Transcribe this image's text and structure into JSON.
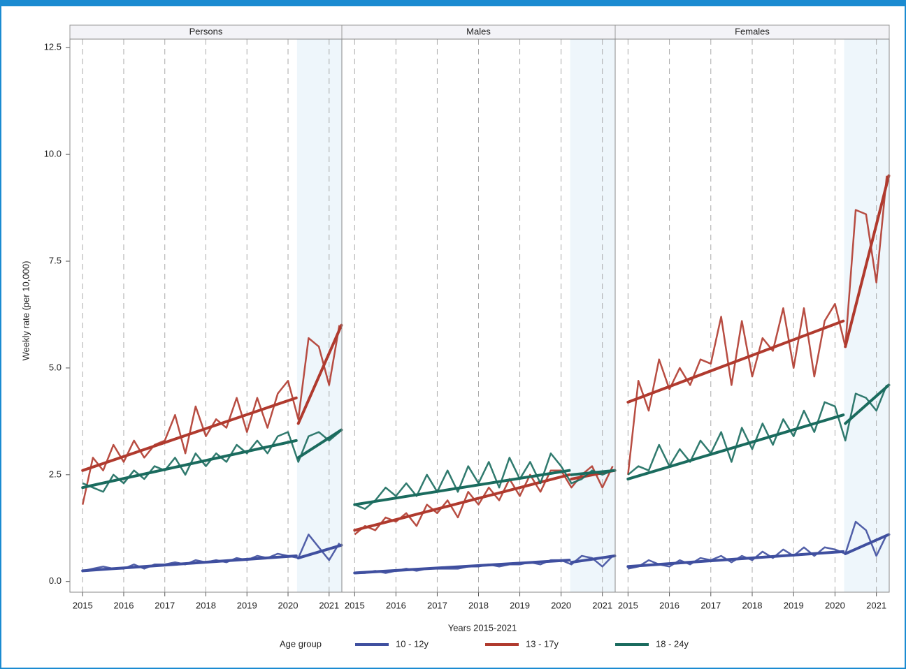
{
  "chart_data": {
    "type": "line",
    "ylabel": "Weekly rate (per 10,000)",
    "xlabel": "Years 2015-2021",
    "legend_title": "Age group",
    "legend_position": "bottom",
    "grid": true,
    "ylim": [
      -0.25,
      12.7
    ],
    "yticks": [
      {
        "value": 0,
        "label": "0.0"
      },
      {
        "value": 2.5,
        "label": "2.5"
      },
      {
        "value": 5,
        "label": "5.0"
      },
      {
        "value": 7.5,
        "label": "7.5"
      },
      {
        "value": 10,
        "label": "10.0"
      },
      {
        "value": 12.5,
        "label": "12.5"
      }
    ],
    "xlim": [
      2014.69,
      2021.31
    ],
    "xticks": [
      2015,
      2016,
      2017,
      2018,
      2019,
      2020,
      2021
    ],
    "shaded_xrange": [
      2020.22,
      2021.31
    ],
    "series": [
      {
        "name": "10 - 12y",
        "color": "#3f4f9f"
      },
      {
        "name": "13 - 17y",
        "color": "#b03a2e"
      },
      {
        "name": "18 - 24y",
        "color": "#1a6b5e"
      }
    ],
    "x": [
      2015,
      2015.25,
      2015.5,
      2015.75,
      2016,
      2016.25,
      2016.5,
      2016.75,
      2017,
      2017.25,
      2017.5,
      2017.75,
      2018,
      2018.25,
      2018.5,
      2018.75,
      2019,
      2019.25,
      2019.5,
      2019.75,
      2020,
      2020.25,
      2020.5,
      2020.75,
      2021,
      2021.25
    ],
    "trend_x": [
      2015,
      2020.2,
      2020.25,
      2021.3
    ],
    "panels": [
      {
        "title": "Persons",
        "series": [
          {
            "values": [
              0.25,
              0.3,
              0.35,
              0.3,
              0.3,
              0.4,
              0.3,
              0.4,
              0.4,
              0.45,
              0.4,
              0.5,
              0.45,
              0.5,
              0.45,
              0.55,
              0.5,
              0.6,
              0.55,
              0.65,
              0.6,
              0.55,
              1.1,
              0.8,
              0.5,
              0.9
            ],
            "trend": [
              0.25,
              0.6,
              0.55,
              0.85
            ]
          },
          {
            "values": [
              1.8,
              2.9,
              2.6,
              3.2,
              2.8,
              3.3,
              2.9,
              3.2,
              3.3,
              3.9,
              3.0,
              4.1,
              3.4,
              3.8,
              3.6,
              4.3,
              3.5,
              4.3,
              3.6,
              4.4,
              4.7,
              3.8,
              5.7,
              5.5,
              4.6,
              6.0
            ],
            "trend": [
              2.6,
              4.3,
              3.7,
              6.0
            ]
          },
          {
            "values": [
              2.3,
              2.2,
              2.1,
              2.5,
              2.3,
              2.6,
              2.4,
              2.7,
              2.6,
              2.9,
              2.5,
              3.0,
              2.7,
              3.0,
              2.8,
              3.2,
              3.0,
              3.3,
              3.0,
              3.4,
              3.5,
              2.8,
              3.4,
              3.5,
              3.3,
              3.5
            ],
            "trend": [
              2.2,
              3.3,
              2.9,
              3.55
            ]
          }
        ]
      },
      {
        "title": "Males",
        "series": [
          {
            "values": [
              0.2,
              0.2,
              0.25,
              0.2,
              0.25,
              0.3,
              0.25,
              0.3,
              0.3,
              0.3,
              0.3,
              0.35,
              0.35,
              0.4,
              0.35,
              0.4,
              0.4,
              0.45,
              0.4,
              0.5,
              0.5,
              0.4,
              0.6,
              0.55,
              0.35,
              0.6
            ],
            "trend": [
              0.2,
              0.5,
              0.45,
              0.6
            ]
          },
          {
            "values": [
              1.1,
              1.3,
              1.2,
              1.5,
              1.4,
              1.6,
              1.3,
              1.8,
              1.6,
              1.9,
              1.5,
              2.1,
              1.8,
              2.2,
              1.9,
              2.4,
              2.0,
              2.5,
              2.1,
              2.6,
              2.6,
              2.2,
              2.5,
              2.7,
              2.2,
              2.7
            ],
            "trend": [
              1.2,
              2.5,
              2.4,
              2.6
            ]
          },
          {
            "values": [
              1.8,
              1.7,
              1.9,
              2.2,
              2.0,
              2.3,
              2.0,
              2.5,
              2.1,
              2.6,
              2.1,
              2.7,
              2.3,
              2.8,
              2.2,
              2.9,
              2.4,
              2.8,
              2.3,
              3.0,
              2.7,
              2.3,
              2.4,
              2.6,
              2.5,
              2.6
            ],
            "trend": [
              1.8,
              2.6,
              2.5,
              2.6
            ]
          }
        ]
      },
      {
        "title": "Females",
        "series": [
          {
            "values": [
              0.3,
              0.35,
              0.5,
              0.4,
              0.35,
              0.5,
              0.4,
              0.55,
              0.5,
              0.6,
              0.45,
              0.6,
              0.5,
              0.7,
              0.55,
              0.75,
              0.6,
              0.8,
              0.6,
              0.8,
              0.75,
              0.65,
              1.4,
              1.2,
              0.6,
              1.1
            ],
            "trend": [
              0.35,
              0.7,
              0.65,
              1.1
            ]
          },
          {
            "values": [
              2.5,
              4.7,
              4.0,
              5.2,
              4.5,
              5.0,
              4.6,
              5.2,
              5.1,
              6.2,
              4.6,
              6.1,
              4.8,
              5.7,
              5.4,
              6.4,
              5.0,
              6.4,
              4.8,
              6.1,
              6.5,
              5.5,
              8.7,
              8.6,
              7.0,
              9.5
            ],
            "trend": [
              4.2,
              6.1,
              5.5,
              9.5
            ]
          },
          {
            "values": [
              2.5,
              2.7,
              2.6,
              3.2,
              2.7,
              3.1,
              2.8,
              3.3,
              3.0,
              3.5,
              2.8,
              3.6,
              3.1,
              3.7,
              3.2,
              3.8,
              3.4,
              4.0,
              3.5,
              4.2,
              4.1,
              3.3,
              4.4,
              4.3,
              4.0,
              4.6
            ],
            "trend": [
              2.4,
              3.9,
              3.7,
              4.6
            ]
          }
        ]
      }
    ]
  }
}
